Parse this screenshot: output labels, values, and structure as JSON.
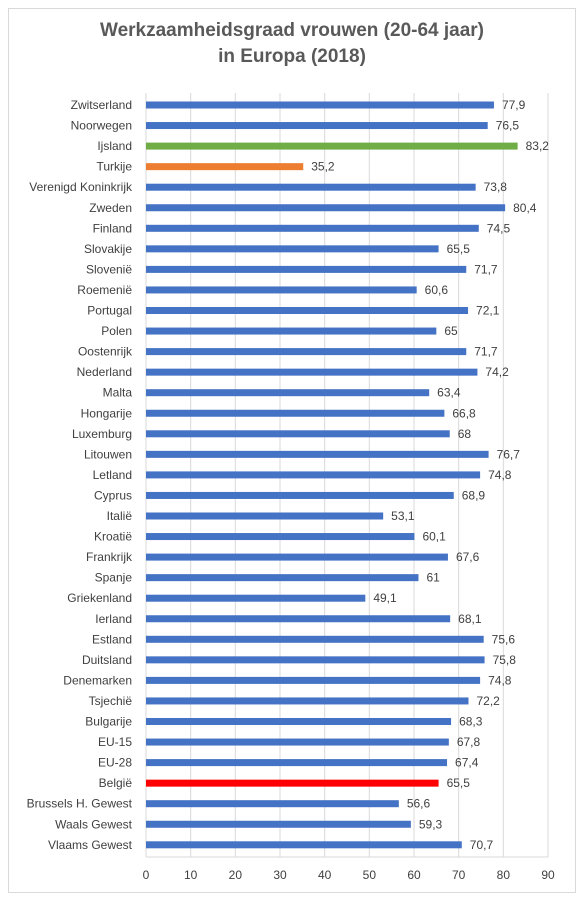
{
  "chart_data": {
    "type": "bar",
    "orientation": "horizontal",
    "title_lines": [
      "Werkzaamheidsgraad vrouwen (20-64 jaar)",
      "in Europa (2018)"
    ],
    "xlabel": "",
    "ylabel": "",
    "xlim": [
      0,
      90
    ],
    "xticks": [
      0,
      10,
      20,
      30,
      40,
      50,
      60,
      70,
      80,
      90
    ],
    "grid": true,
    "legend": "none",
    "categories": [
      "Zwitserland",
      "Noorwegen",
      "Ijsland",
      "Turkije",
      "Verenigd Koninkrijk",
      "Zweden",
      "Finland",
      "Slovakije",
      "Slovenië",
      "Roemenië",
      "Portugal",
      "Polen",
      "Oostenrijk",
      "Nederland",
      "Malta",
      "Hongarije",
      "Luxemburg",
      "Litouwen",
      "Letland",
      "Cyprus",
      "Italië",
      "Kroatië",
      "Frankrijk",
      "Spanje",
      "Griekenland",
      "Ierland",
      "Estland",
      "Duitsland",
      "Denemarken",
      "Tsjechië",
      "Bulgarije",
      "EU-15",
      "EU-28",
      "België",
      "Brussels H. Gewest",
      "Waals Gewest",
      "Vlaams Gewest"
    ],
    "values": [
      77.9,
      76.5,
      83.2,
      35.2,
      73.8,
      80.4,
      74.5,
      65.5,
      71.7,
      60.6,
      72.1,
      65,
      71.7,
      74.2,
      63.4,
      66.8,
      68,
      76.7,
      74.8,
      68.9,
      53.1,
      60.1,
      67.6,
      61,
      49.1,
      68.1,
      75.6,
      75.8,
      74.8,
      72.2,
      68.3,
      67.8,
      67.4,
      65.5,
      56.6,
      59.3,
      70.7
    ],
    "data_labels": [
      "77,9",
      "76,5",
      "83,2",
      "35,2",
      "73,8",
      "80,4",
      "74,5",
      "65,5",
      "71,7",
      "60,6",
      "72,1",
      "65",
      "71,7",
      "74,2",
      "63,4",
      "66,8",
      "68",
      "76,7",
      "74,8",
      "68,9",
      "53,1",
      "60,1",
      "67,6",
      "61",
      "49,1",
      "68,1",
      "75,6",
      "75,8",
      "74,8",
      "72,2",
      "68,3",
      "67,8",
      "67,4",
      "65,5",
      "56,6",
      "59,3",
      "70,7"
    ],
    "colors": {
      "default": "#4472c4",
      "Ijsland": "#70ad47",
      "Turkije": "#ed7d31",
      "België": "#ff0000",
      "gridline": "#d9d9d9",
      "text": "#404040",
      "title": "#595959"
    }
  }
}
